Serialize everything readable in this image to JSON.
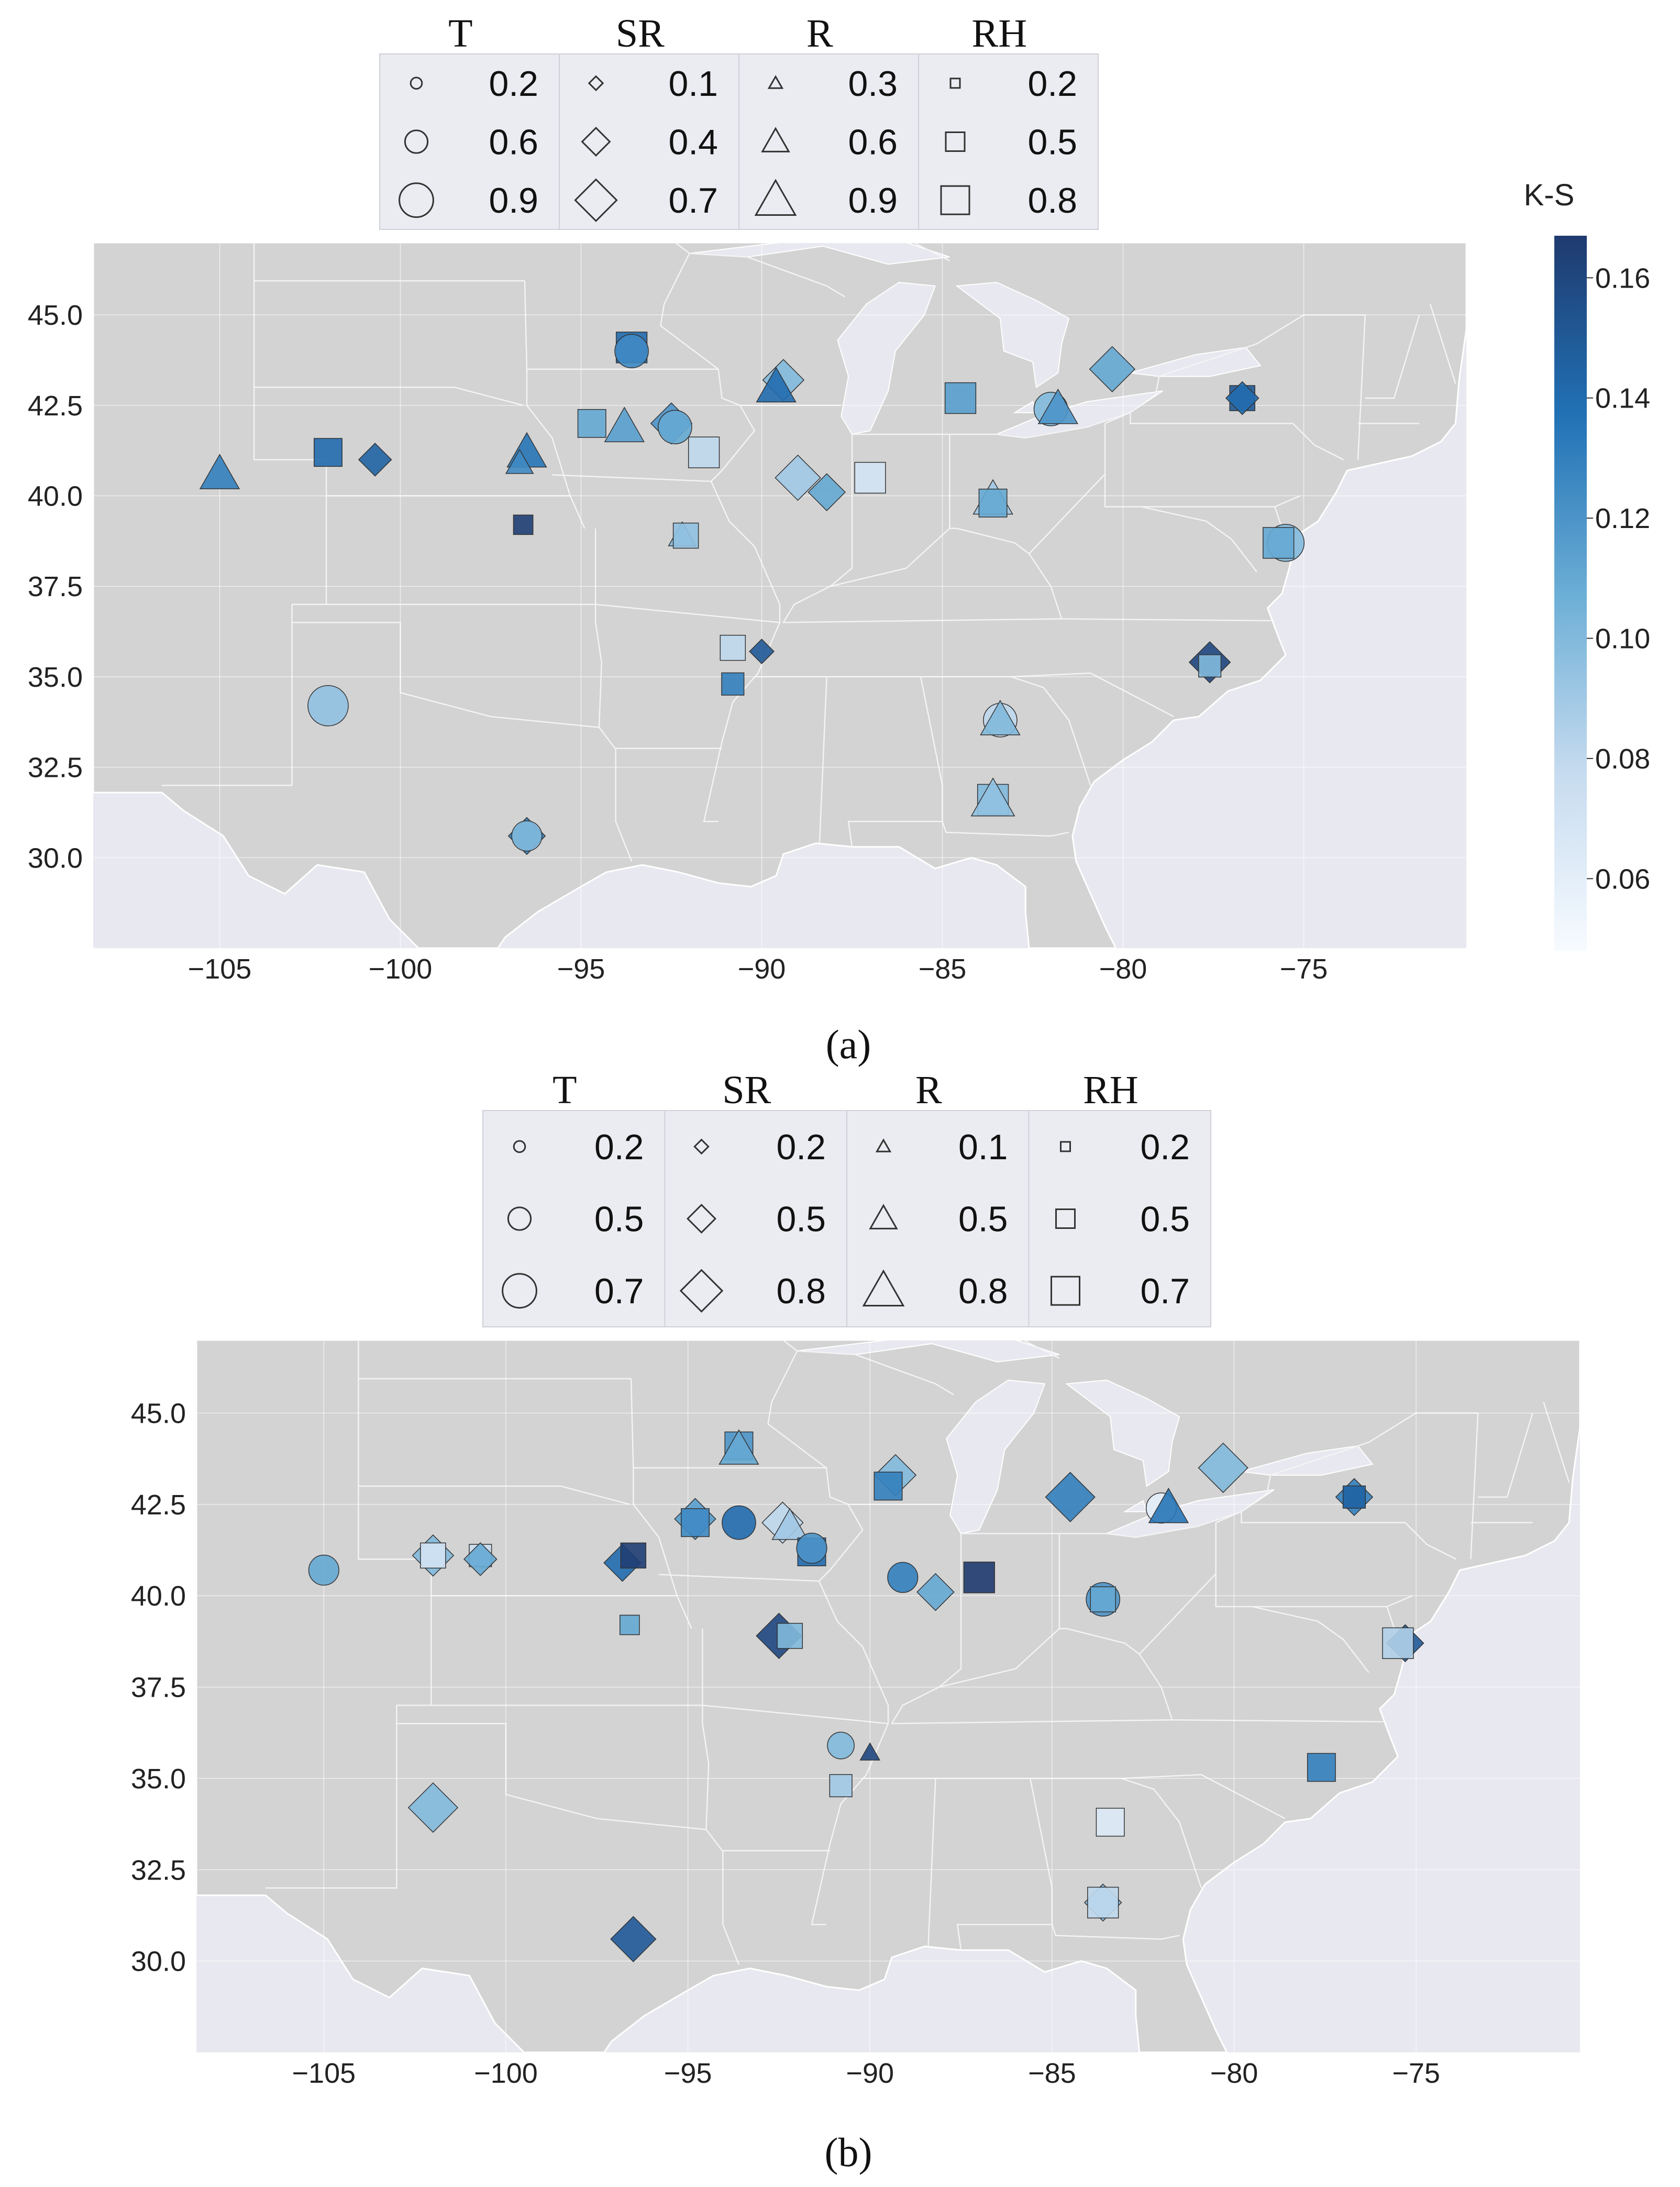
{
  "chart_data": [
    {
      "type": "scatter",
      "panel_label": "(a)",
      "xlim": [
        -108.5,
        -70.5
      ],
      "ylim": [
        27.5,
        47.0
      ],
      "xticks": [
        "−105",
        "−100",
        "−95",
        "−90",
        "−85",
        "−80",
        "−75"
      ],
      "yticks": [
        "45.0",
        "42.5",
        "40.0",
        "37.5",
        "35.0",
        "32.5",
        "30.0"
      ],
      "colorbar": {
        "label": "K-S",
        "range": [
          0.048,
          0.167
        ],
        "ticks": [
          "0.16",
          "0.14",
          "0.12",
          "0.10",
          "0.08",
          "0.06"
        ],
        "colors": [
          "#f7fbff",
          "#c6dbef",
          "#6baed6",
          "#2171b5",
          "#1f3a6e"
        ]
      },
      "legend": [
        {
          "title": "T",
          "marker": "circle",
          "values": [
            "0.2",
            "0.6",
            "0.9"
          ]
        },
        {
          "title": "SR",
          "marker": "diamond",
          "values": [
            "0.1",
            "0.4",
            "0.7"
          ]
        },
        {
          "title": "R",
          "marker": "triangle",
          "values": [
            "0.3",
            "0.6",
            "0.9"
          ]
        },
        {
          "title": "RH",
          "marker": "square",
          "values": [
            "0.2",
            "0.5",
            "0.8"
          ]
        }
      ],
      "points": [
        {
          "lon": -93.6,
          "lat": 44.1,
          "marker": "square",
          "size": 0.7,
          "ks": 0.14
        },
        {
          "lon": -93.6,
          "lat": 44.0,
          "marker": "circle",
          "size": 0.6,
          "ks": 0.125
        },
        {
          "lon": -89.4,
          "lat": 43.2,
          "marker": "diamond",
          "size": 0.6,
          "ks": 0.1
        },
        {
          "lon": -89.6,
          "lat": 43.0,
          "marker": "triangle",
          "size": 0.6,
          "ks": 0.14
        },
        {
          "lon": -84.5,
          "lat": 42.7,
          "marker": "square",
          "size": 0.7,
          "ks": 0.115
        },
        {
          "lon": -82.0,
          "lat": 42.4,
          "marker": "circle",
          "size": 0.6,
          "ks": 0.1
        },
        {
          "lon": -81.8,
          "lat": 42.4,
          "marker": "triangle",
          "size": 0.6,
          "ks": 0.12
        },
        {
          "lon": -80.3,
          "lat": 43.5,
          "marker": "diamond",
          "size": 0.7,
          "ks": 0.11
        },
        {
          "lon": -76.7,
          "lat": 42.7,
          "marker": "square",
          "size": 0.5,
          "ks": 0.15
        },
        {
          "lon": -76.7,
          "lat": 42.7,
          "marker": "diamond",
          "size": 0.4,
          "ks": 0.14
        },
        {
          "lon": -102.0,
          "lat": 41.2,
          "marker": "square",
          "size": 0.6,
          "ks": 0.14
        },
        {
          "lon": -100.7,
          "lat": 41.0,
          "marker": "diamond",
          "size": 0.4,
          "ks": 0.145
        },
        {
          "lon": -105.0,
          "lat": 40.6,
          "marker": "triangle",
          "size": 0.6,
          "ks": 0.13
        },
        {
          "lon": -96.5,
          "lat": 41.2,
          "marker": "triangle",
          "size": 0.6,
          "ks": 0.135
        },
        {
          "lon": -96.7,
          "lat": 40.9,
          "marker": "triangle",
          "size": 0.3,
          "ks": 0.125
        },
        {
          "lon": -96.6,
          "lat": 39.2,
          "marker": "square",
          "size": 0.3,
          "ks": 0.165
        },
        {
          "lon": -94.7,
          "lat": 42.0,
          "marker": "square",
          "size": 0.6,
          "ks": 0.11
        },
        {
          "lon": -93.8,
          "lat": 41.9,
          "marker": "triangle",
          "size": 0.6,
          "ks": 0.115
        },
        {
          "lon": -92.5,
          "lat": 42.0,
          "marker": "diamond",
          "size": 0.6,
          "ks": 0.12
        },
        {
          "lon": -92.4,
          "lat": 41.9,
          "marker": "circle",
          "size": 0.6,
          "ks": 0.11
        },
        {
          "lon": -91.6,
          "lat": 41.2,
          "marker": "square",
          "size": 0.7,
          "ks": 0.08
        },
        {
          "lon": -92.2,
          "lat": 38.9,
          "marker": "triangle",
          "size": 0.3,
          "ks": 0.1
        },
        {
          "lon": -92.1,
          "lat": 38.9,
          "marker": "square",
          "size": 0.5,
          "ks": 0.095
        },
        {
          "lon": -89.0,
          "lat": 40.5,
          "marker": "diamond",
          "size": 0.7,
          "ks": 0.09
        },
        {
          "lon": -88.2,
          "lat": 40.1,
          "marker": "diamond",
          "size": 0.5,
          "ks": 0.11
        },
        {
          "lon": -87.0,
          "lat": 40.5,
          "marker": "square",
          "size": 0.7,
          "ks": 0.07
        },
        {
          "lon": -83.6,
          "lat": 39.9,
          "marker": "triangle",
          "size": 0.6,
          "ks": 0.09
        },
        {
          "lon": -83.6,
          "lat": 39.8,
          "marker": "square",
          "size": 0.6,
          "ks": 0.11
        },
        {
          "lon": -75.5,
          "lat": 38.7,
          "marker": "circle",
          "size": 0.7,
          "ks": 0.1
        },
        {
          "lon": -75.7,
          "lat": 38.7,
          "marker": "square",
          "size": 0.7,
          "ks": 0.11
        },
        {
          "lon": -90.8,
          "lat": 35.8,
          "marker": "square",
          "size": 0.5,
          "ks": 0.08
        },
        {
          "lon": -90.0,
          "lat": 35.7,
          "marker": "diamond",
          "size": 0.2,
          "ks": 0.15
        },
        {
          "lon": -90.8,
          "lat": 34.8,
          "marker": "square",
          "size": 0.4,
          "ks": 0.13
        },
        {
          "lon": -77.6,
          "lat": 35.4,
          "marker": "diamond",
          "size": 0.6,
          "ks": 0.16
        },
        {
          "lon": -77.6,
          "lat": 35.3,
          "marker": "square",
          "size": 0.4,
          "ks": 0.1
        },
        {
          "lon": -83.4,
          "lat": 33.8,
          "marker": "circle",
          "size": 0.6,
          "ks": 0.08
        },
        {
          "lon": -83.4,
          "lat": 33.8,
          "marker": "triangle",
          "size": 0.6,
          "ks": 0.1
        },
        {
          "lon": -83.6,
          "lat": 31.6,
          "marker": "square",
          "size": 0.7,
          "ks": 0.1
        },
        {
          "lon": -83.6,
          "lat": 31.6,
          "marker": "triangle",
          "size": 0.7,
          "ks": 0.095
        },
        {
          "lon": -102.0,
          "lat": 34.2,
          "marker": "circle",
          "size": 0.8,
          "ks": 0.095
        },
        {
          "lon": -96.5,
          "lat": 30.6,
          "marker": "diamond",
          "size": 0.5,
          "ks": 0.13
        },
        {
          "lon": -96.5,
          "lat": 30.6,
          "marker": "circle",
          "size": 0.5,
          "ks": 0.1
        }
      ]
    },
    {
      "type": "scatter",
      "panel_label": "(b)",
      "xlim": [
        -108.5,
        -70.5
      ],
      "ylim": [
        27.5,
        47.0
      ],
      "xticks": [
        "−105",
        "−100",
        "−95",
        "−90",
        "−85",
        "−80",
        "−75"
      ],
      "yticks": [
        "45.0",
        "42.5",
        "40.0",
        "37.5",
        "35.0",
        "32.5",
        "30.0"
      ],
      "legend": [
        {
          "title": "T",
          "marker": "circle",
          "values": [
            "0.2",
            "0.5",
            "0.7"
          ]
        },
        {
          "title": "SR",
          "marker": "diamond",
          "values": [
            "0.2",
            "0.5",
            "0.8"
          ]
        },
        {
          "title": "R",
          "marker": "triangle",
          "values": [
            "0.1",
            "0.5",
            "0.8"
          ]
        },
        {
          "title": "RH",
          "marker": "square",
          "values": [
            "0.2",
            "0.5",
            "0.7"
          ]
        }
      ],
      "points": [
        {
          "lon": -93.6,
          "lat": 44.1,
          "marker": "square",
          "size": 0.6,
          "ks": 0.12
        },
        {
          "lon": -93.6,
          "lat": 44.0,
          "marker": "triangle",
          "size": 0.6,
          "ks": 0.11
        },
        {
          "lon": -89.3,
          "lat": 43.3,
          "marker": "diamond",
          "size": 0.6,
          "ks": 0.1
        },
        {
          "lon": -89.5,
          "lat": 43.0,
          "marker": "square",
          "size": 0.6,
          "ks": 0.13
        },
        {
          "lon": -84.5,
          "lat": 42.7,
          "marker": "diamond",
          "size": 0.8,
          "ks": 0.13
        },
        {
          "lon": -82.0,
          "lat": 42.4,
          "marker": "circle",
          "size": 0.5,
          "ks": 0.06
        },
        {
          "lon": -81.8,
          "lat": 42.4,
          "marker": "triangle",
          "size": 0.6,
          "ks": 0.135
        },
        {
          "lon": -80.3,
          "lat": 43.5,
          "marker": "diamond",
          "size": 0.8,
          "ks": 0.1
        },
        {
          "lon": -76.7,
          "lat": 42.7,
          "marker": "diamond",
          "size": 0.5,
          "ks": 0.13
        },
        {
          "lon": -76.7,
          "lat": 42.7,
          "marker": "square",
          "size": 0.4,
          "ks": 0.145
        },
        {
          "lon": -105.0,
          "lat": 40.7,
          "marker": "circle",
          "size": 0.5,
          "ks": 0.11
        },
        {
          "lon": -102.0,
          "lat": 41.1,
          "marker": "diamond",
          "size": 0.6,
          "ks": 0.1
        },
        {
          "lon": -102.0,
          "lat": 41.1,
          "marker": "square",
          "size": 0.5,
          "ks": 0.07
        },
        {
          "lon": -100.7,
          "lat": 41.1,
          "marker": "square",
          "size": 0.4,
          "ks": 0.075
        },
        {
          "lon": -100.7,
          "lat": 41.0,
          "marker": "diamond",
          "size": 0.4,
          "ks": 0.11
        },
        {
          "lon": -96.8,
          "lat": 40.9,
          "marker": "diamond",
          "size": 0.5,
          "ks": 0.14
        },
        {
          "lon": -96.5,
          "lat": 41.1,
          "marker": "square",
          "size": 0.5,
          "ks": 0.165
        },
        {
          "lon": -96.6,
          "lat": 39.2,
          "marker": "square",
          "size": 0.3,
          "ks": 0.11
        },
        {
          "lon": -94.8,
          "lat": 42.1,
          "marker": "diamond",
          "size": 0.6,
          "ks": 0.115
        },
        {
          "lon": -94.8,
          "lat": 42.0,
          "marker": "square",
          "size": 0.6,
          "ks": 0.125
        },
        {
          "lon": -93.6,
          "lat": 42.0,
          "marker": "circle",
          "size": 0.6,
          "ks": 0.14
        },
        {
          "lon": -92.4,
          "lat": 42.0,
          "marker": "diamond",
          "size": 0.6,
          "ks": 0.08
        },
        {
          "lon": -92.2,
          "lat": 41.9,
          "marker": "triangle",
          "size": 0.5,
          "ks": 0.09
        },
        {
          "lon": -91.6,
          "lat": 41.2,
          "marker": "square",
          "size": 0.6,
          "ks": 0.14
        },
        {
          "lon": -91.6,
          "lat": 41.3,
          "marker": "circle",
          "size": 0.5,
          "ks": 0.12
        },
        {
          "lon": -92.5,
          "lat": 38.9,
          "marker": "diamond",
          "size": 0.7,
          "ks": 0.16
        },
        {
          "lon": -92.2,
          "lat": 38.9,
          "marker": "square",
          "size": 0.5,
          "ks": 0.1
        },
        {
          "lon": -89.1,
          "lat": 40.5,
          "marker": "circle",
          "size": 0.5,
          "ks": 0.13
        },
        {
          "lon": -88.2,
          "lat": 40.1,
          "marker": "diamond",
          "size": 0.5,
          "ks": 0.11
        },
        {
          "lon": -87.0,
          "lat": 40.5,
          "marker": "square",
          "size": 0.7,
          "ks": 0.167
        },
        {
          "lon": -83.6,
          "lat": 39.9,
          "marker": "circle",
          "size": 0.6,
          "ks": 0.12
        },
        {
          "lon": -83.6,
          "lat": 39.9,
          "marker": "square",
          "size": 0.5,
          "ks": 0.11
        },
        {
          "lon": -75.3,
          "lat": 38.7,
          "marker": "diamond",
          "size": 0.5,
          "ks": 0.15
        },
        {
          "lon": -75.5,
          "lat": 38.7,
          "marker": "square",
          "size": 0.7,
          "ks": 0.085
        },
        {
          "lon": -90.8,
          "lat": 35.9,
          "marker": "circle",
          "size": 0.4,
          "ks": 0.1
        },
        {
          "lon": -90.0,
          "lat": 35.7,
          "marker": "triangle",
          "size": 0.1,
          "ks": 0.16
        },
        {
          "lon": -90.8,
          "lat": 34.8,
          "marker": "square",
          "size": 0.4,
          "ks": 0.09
        },
        {
          "lon": -77.6,
          "lat": 35.3,
          "marker": "square",
          "size": 0.6,
          "ks": 0.13
        },
        {
          "lon": -83.4,
          "lat": 33.8,
          "marker": "square",
          "size": 0.6,
          "ks": 0.065
        },
        {
          "lon": -83.6,
          "lat": 31.6,
          "marker": "diamond",
          "size": 0.5,
          "ks": 0.1
        },
        {
          "lon": -83.6,
          "lat": 31.6,
          "marker": "square",
          "size": 0.7,
          "ks": 0.08
        },
        {
          "lon": -102.0,
          "lat": 34.2,
          "marker": "diamond",
          "size": 0.8,
          "ks": 0.1
        },
        {
          "lon": -96.5,
          "lat": 30.6,
          "marker": "diamond",
          "size": 0.7,
          "ks": 0.15
        }
      ]
    }
  ]
}
